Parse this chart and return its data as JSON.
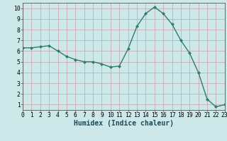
{
  "x": [
    0,
    1,
    2,
    3,
    4,
    5,
    6,
    7,
    8,
    9,
    10,
    11,
    12,
    13,
    14,
    15,
    16,
    17,
    18,
    19,
    20,
    21,
    22,
    23
  ],
  "y": [
    6.3,
    6.3,
    6.4,
    6.5,
    6.0,
    5.5,
    5.2,
    5.0,
    5.0,
    4.8,
    4.5,
    4.6,
    6.2,
    8.3,
    9.5,
    10.1,
    9.5,
    8.5,
    7.0,
    5.8,
    4.0,
    1.5,
    0.8,
    1.0
  ],
  "xlabel": "Humidex (Indice chaleur)",
  "xlim": [
    0,
    23
  ],
  "ylim": [
    0.5,
    10.5
  ],
  "yticks": [
    1,
    2,
    3,
    4,
    5,
    6,
    7,
    8,
    9,
    10
  ],
  "xticks": [
    0,
    1,
    2,
    3,
    4,
    5,
    6,
    7,
    8,
    9,
    10,
    11,
    12,
    13,
    14,
    15,
    16,
    17,
    18,
    19,
    20,
    21,
    22,
    23
  ],
  "line_color": "#2e7d6e",
  "bg_color": "#cde8e8",
  "grid_color": "#c8a0a8",
  "tick_label_fontsize": 5.8,
  "xlabel_fontsize": 7.0,
  "marker": "D",
  "marker_size": 2.0,
  "linewidth": 1.0
}
